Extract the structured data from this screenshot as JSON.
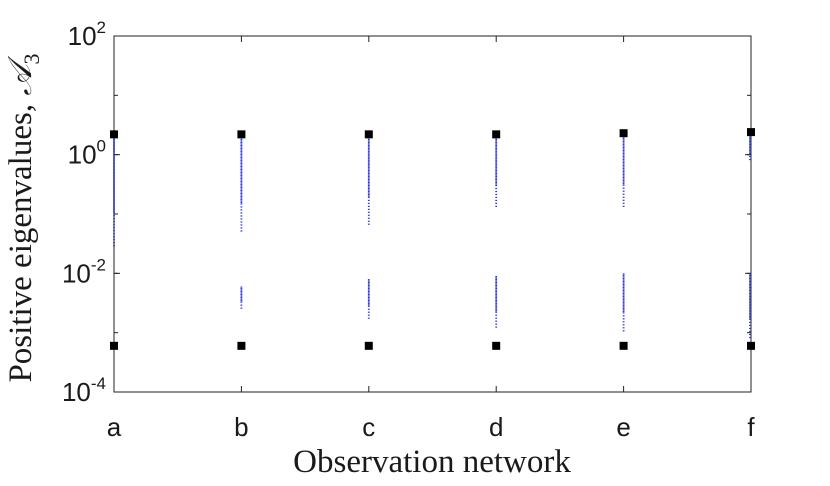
{
  "chart_data": {
    "type": "scatter",
    "title": "",
    "xlabel": "Observation network",
    "ylabel_text": "Positive eigenvalues, ",
    "ylabel_symbol": "𝒜",
    "ylabel_subscript": "3",
    "yscale": "log",
    "ylim": [
      0.0001,
      100
    ],
    "grid": false,
    "categories": [
      "a",
      "b",
      "c",
      "d",
      "e",
      "f"
    ],
    "yticks": [
      {
        "value": 0.0001,
        "base": "10",
        "exp": "-4"
      },
      {
        "value": 0.01,
        "base": "10",
        "exp": "-2"
      },
      {
        "value": 1,
        "base": "10",
        "exp": "0"
      },
      {
        "value": 100,
        "base": "10",
        "exp": "2"
      }
    ],
    "series": [
      {
        "marker": "square",
        "color": "#000000",
        "values": {
          "a": [
            2.2,
            0.0006
          ],
          "b": [
            2.2,
            0.0006
          ],
          "c": [
            2.2,
            0.0006
          ],
          "d": [
            2.2,
            0.0006
          ],
          "e": [
            2.3,
            0.0006
          ],
          "f": [
            2.4,
            0.0006
          ]
        }
      },
      {
        "marker": "point",
        "color": "#2b35d6",
        "ranges": {
          "a": [
            [
              0.03,
              2.2
            ]
          ],
          "b": [
            [
              0.05,
              2.2
            ],
            [
              0.0025,
              0.006
            ]
          ],
          "c": [
            [
              0.065,
              2.2
            ],
            [
              0.0018,
              0.008
            ]
          ],
          "d": [
            [
              0.13,
              2.2
            ],
            [
              0.0012,
              0.009
            ]
          ],
          "e": [
            [
              0.13,
              2.3
            ],
            [
              0.0011,
              0.01
            ]
          ],
          "f": [
            [
              0.8,
              2.4
            ],
            [
              0.0008,
              0.01
            ]
          ]
        }
      }
    ]
  }
}
